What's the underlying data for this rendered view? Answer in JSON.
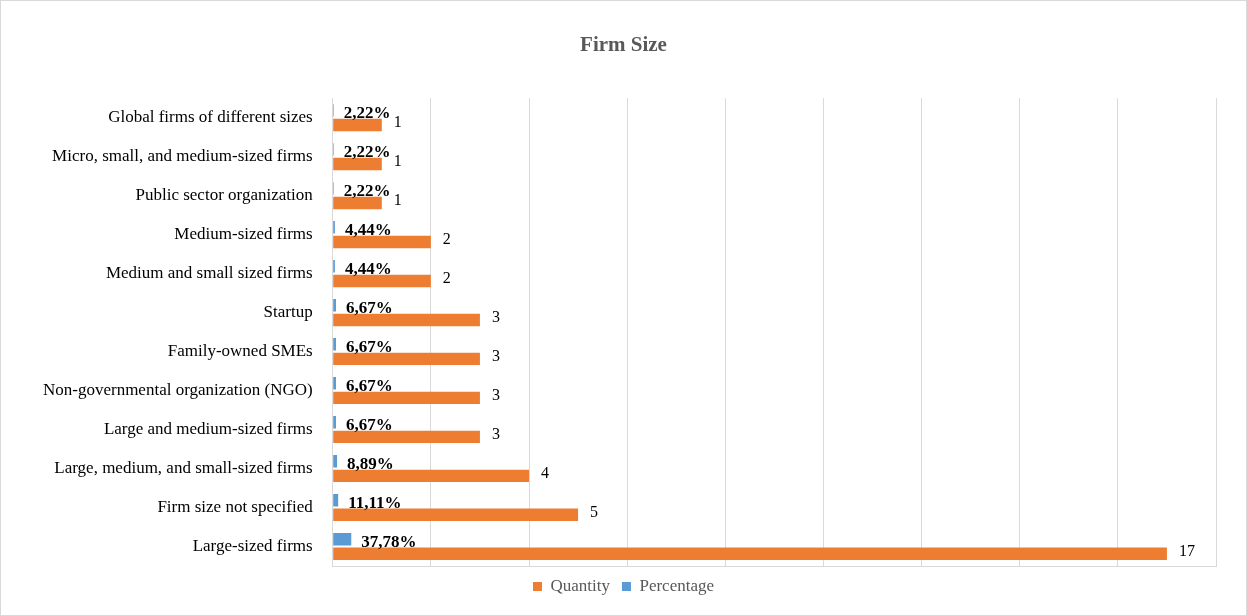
{
  "chart_data": {
    "type": "bar",
    "orientation": "horizontal",
    "title": "Firm Size",
    "categories": [
      "Global firms of different sizes",
      "Micro, small, and medium-sized firms",
      "Public sector organization",
      "Medium-sized firms",
      "Medium and small sized firms",
      "Startup",
      "Family-owned SMEs",
      "Non-governmental organization (NGO)",
      "Large and medium-sized firms",
      "Large, medium, and small-sized firms",
      "Firm size not specified",
      "Large-sized firms"
    ],
    "series": [
      {
        "name": "Quantity",
        "color": "#ed7d31",
        "values": [
          1,
          1,
          1,
          2,
          2,
          3,
          3,
          3,
          3,
          4,
          5,
          17
        ],
        "value_labels": [
          "1",
          "1",
          "1",
          "2",
          "2",
          "3",
          "3",
          "3",
          "3",
          "4",
          "5",
          "17"
        ]
      },
      {
        "name": "Percentage",
        "color": "#5b9bd5",
        "values": [
          0.0222,
          0.0222,
          0.0222,
          0.0444,
          0.0444,
          0.0667,
          0.0667,
          0.0667,
          0.0667,
          0.0889,
          0.1111,
          0.3778
        ],
        "value_labels": [
          "2,22%",
          "2,22%",
          "2,22%",
          "4,44%",
          "4,44%",
          "6,67%",
          "6,67%",
          "6,67%",
          "6,67%",
          "8,89%",
          "11,11%",
          "37,78%"
        ]
      }
    ],
    "grid": "x",
    "tick_labels": "y",
    "legend": "bottom"
  }
}
